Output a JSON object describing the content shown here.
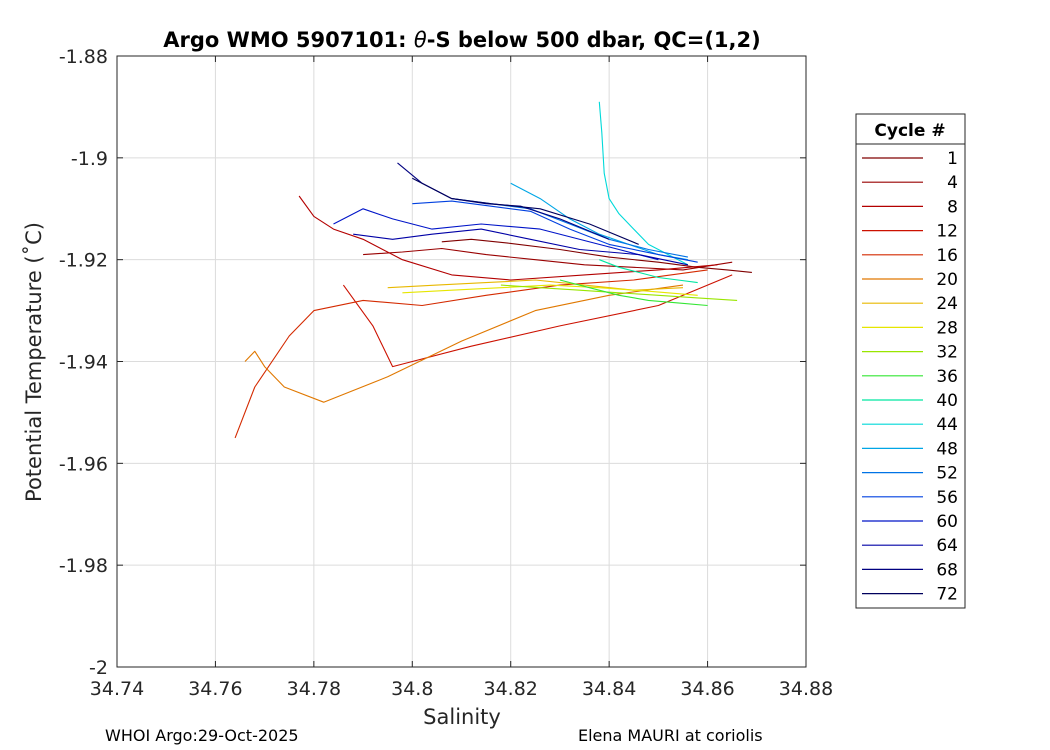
{
  "chart_data": {
    "type": "line",
    "title_prefix": "Argo WMO 5907101: ",
    "title_theta": "θ",
    "title_suffix": "-S below 500 dbar,  QC=(1,2)",
    "xlabel": "Salinity",
    "ylabel": "Potential Temperature (˚C)",
    "xlim": [
      34.74,
      34.88
    ],
    "ylim": [
      -2.0,
      -1.88
    ],
    "xticks": [
      "34.74",
      "34.76",
      "34.78",
      "34.8",
      "34.82",
      "34.84",
      "34.86",
      "34.88"
    ],
    "yticks": [
      "-1.88",
      "-1.9",
      "-1.92",
      "-1.94",
      "-1.96",
      "-1.98",
      "-2"
    ],
    "grid": true,
    "legend": {
      "title": "Cycle #",
      "placement": "right-outside"
    },
    "series": [
      {
        "name": "1",
        "color": "#800000",
        "x": [
          34.806,
          34.812,
          34.82,
          34.83,
          34.84,
          34.85,
          34.858,
          34.864,
          34.869
        ],
        "y": [
          -1.9165,
          -1.916,
          -1.9168,
          -1.918,
          -1.9195,
          -1.9205,
          -1.9215,
          -1.922,
          -1.9225
        ]
      },
      {
        "name": "4",
        "color": "#990000",
        "x": [
          34.79,
          34.798,
          34.806,
          34.815,
          34.825,
          34.835,
          34.845,
          34.855,
          34.865
        ],
        "y": [
          -1.919,
          -1.9185,
          -1.9178,
          -1.919,
          -1.92,
          -1.921,
          -1.9215,
          -1.922,
          -1.9205
        ]
      },
      {
        "name": "8",
        "color": "#b30000",
        "x": [
          34.777,
          34.78,
          34.784,
          34.79,
          34.798,
          34.808,
          34.82,
          34.835,
          34.85,
          34.862
        ],
        "y": [
          -1.9075,
          -1.9115,
          -1.914,
          -1.916,
          -1.92,
          -1.923,
          -1.924,
          -1.923,
          -1.922,
          -1.921
        ]
      },
      {
        "name": "12",
        "color": "#cc1100",
        "x": [
          34.786,
          34.792,
          34.796,
          34.8,
          34.812,
          34.83,
          34.85,
          34.865
        ],
        "y": [
          -1.925,
          -1.933,
          -1.941,
          -1.94,
          -1.937,
          -1.933,
          -1.929,
          -1.923
        ]
      },
      {
        "name": "16",
        "color": "#d42a00",
        "x": [
          34.764,
          34.768,
          34.775,
          34.78,
          34.79,
          34.802,
          34.815,
          34.83,
          34.845,
          34.86
        ],
        "y": [
          -1.955,
          -1.945,
          -1.935,
          -1.93,
          -1.928,
          -1.929,
          -1.927,
          -1.925,
          -1.924,
          -1.922
        ]
      },
      {
        "name": "20",
        "color": "#e07800",
        "x": [
          34.766,
          34.768,
          34.77,
          34.774,
          34.782,
          34.795,
          34.81,
          34.825,
          34.84,
          34.855
        ],
        "y": [
          -1.94,
          -1.938,
          -1.941,
          -1.945,
          -1.948,
          -1.943,
          -1.936,
          -1.93,
          -1.927,
          -1.925
        ]
      },
      {
        "name": "24",
        "color": "#e8b800",
        "x": [
          34.795,
          34.805,
          34.815,
          34.825,
          34.835,
          34.845,
          34.855
        ],
        "y": [
          -1.9255,
          -1.925,
          -1.9245,
          -1.924,
          -1.925,
          -1.926,
          -1.9255
        ]
      },
      {
        "name": "28",
        "color": "#e6e600",
        "x": [
          34.798,
          34.808,
          34.818,
          34.828,
          34.838,
          34.848,
          34.858
        ],
        "y": [
          -1.9265,
          -1.926,
          -1.9255,
          -1.925,
          -1.9255,
          -1.9262,
          -1.927
        ]
      },
      {
        "name": "32",
        "color": "#99e600",
        "x": [
          34.818,
          34.826,
          34.834,
          34.842,
          34.85,
          34.858,
          34.866
        ],
        "y": [
          -1.925,
          -1.9255,
          -1.926,
          -1.9265,
          -1.927,
          -1.9275,
          -1.928
        ]
      },
      {
        "name": "36",
        "color": "#33e633",
        "x": [
          34.83,
          34.836,
          34.842,
          34.848,
          34.854,
          34.86
        ],
        "y": [
          -1.924,
          -1.9255,
          -1.927,
          -1.928,
          -1.9285,
          -1.929
        ]
      },
      {
        "name": "40",
        "color": "#00e6a0",
        "x": [
          34.838,
          34.842,
          34.846,
          34.85,
          34.854,
          34.858
        ],
        "y": [
          -1.92,
          -1.9215,
          -1.9225,
          -1.9235,
          -1.924,
          -1.9245
        ]
      },
      {
        "name": "44",
        "color": "#00d9d9",
        "x": [
          34.838,
          34.8385,
          34.839,
          34.84,
          34.842,
          34.845,
          34.848,
          34.852,
          34.856
        ],
        "y": [
          -1.889,
          -1.895,
          -1.903,
          -1.908,
          -1.911,
          -1.914,
          -1.917,
          -1.919,
          -1.921
        ]
      },
      {
        "name": "48",
        "color": "#00a6e6",
        "x": [
          34.82,
          34.826,
          34.832,
          34.838,
          34.844,
          34.85,
          34.856
        ],
        "y": [
          -1.905,
          -1.908,
          -1.912,
          -1.915,
          -1.917,
          -1.919,
          -1.92
        ]
      },
      {
        "name": "52",
        "color": "#0073e6",
        "x": [
          34.808,
          34.816,
          34.824,
          34.832,
          34.84,
          34.848,
          34.856
        ],
        "y": [
          -1.908,
          -1.909,
          -1.91,
          -1.913,
          -1.916,
          -1.918,
          -1.9195
        ]
      },
      {
        "name": "56",
        "color": "#0040e0",
        "x": [
          34.8,
          34.808,
          34.816,
          34.824,
          34.832,
          34.84,
          34.85,
          34.858
        ],
        "y": [
          -1.909,
          -1.9085,
          -1.9095,
          -1.9105,
          -1.914,
          -1.917,
          -1.919,
          -1.9205
        ]
      },
      {
        "name": "60",
        "color": "#0014c8",
        "x": [
          34.784,
          34.79,
          34.796,
          34.804,
          34.814,
          34.826,
          34.838,
          34.85
        ],
        "y": [
          -1.913,
          -1.91,
          -1.912,
          -1.914,
          -1.913,
          -1.914,
          -1.917,
          -1.92
        ]
      },
      {
        "name": "64",
        "color": "#0000a6",
        "x": [
          34.788,
          34.796,
          34.804,
          34.814,
          34.824,
          34.834,
          34.846,
          34.856
        ],
        "y": [
          -1.915,
          -1.916,
          -1.915,
          -1.914,
          -1.916,
          -1.918,
          -1.919,
          -1.921
        ]
      },
      {
        "name": "68",
        "color": "#000080",
        "x": [
          34.797,
          34.802,
          34.808,
          34.815,
          34.822,
          34.83,
          34.84
        ],
        "y": [
          -1.901,
          -1.905,
          -1.908,
          -1.909,
          -1.9095,
          -1.912,
          -1.916
        ]
      },
      {
        "name": "72",
        "color": "#00005c",
        "x": [
          34.8,
          34.808,
          34.816,
          34.826,
          34.836,
          34.846
        ],
        "y": [
          -1.904,
          -1.908,
          -1.909,
          -1.91,
          -1.913,
          -1.917
        ]
      }
    ]
  },
  "footer": {
    "left": "WHOI Argo:29-Oct-2025",
    "right": "Elena MAURI at coriolis"
  }
}
